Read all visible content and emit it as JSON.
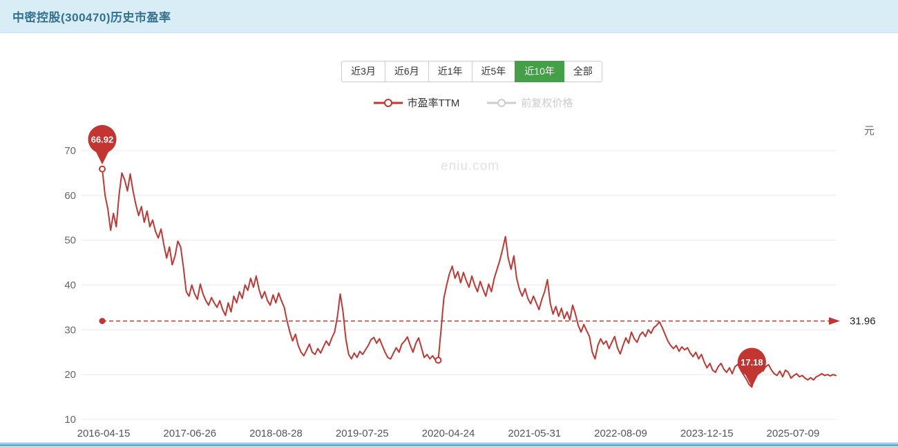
{
  "header": {
    "title": "中密控股(300470)历史市盈率"
  },
  "toolbar": {
    "ranges": [
      {
        "label": "近3月",
        "active": false
      },
      {
        "label": "近6月",
        "active": false
      },
      {
        "label": "近1年",
        "active": false
      },
      {
        "label": "近5年",
        "active": false
      },
      {
        "label": "近10年",
        "active": true
      },
      {
        "label": "全部",
        "active": false
      }
    ]
  },
  "legend": [
    {
      "label": "市盈率TTM",
      "color": "#c23531",
      "text_color": "#333333",
      "active": true
    },
    {
      "label": "前复权价格",
      "color": "#cccccc",
      "text_color": "#cccccc",
      "active": false
    }
  ],
  "watermark": "eniu.com",
  "colors": {
    "accent_green": "#43a047",
    "series_red": "#c23531",
    "legend_inactive": "#cccccc",
    "header_bg": "#d9edf7",
    "header_text": "#31708f",
    "grid": "#e8e8e8",
    "axis_text": "#666666"
  },
  "chart_data": {
    "type": "line",
    "title": "中密控股(300470)历史市盈率",
    "unit_right": "元",
    "ylim": [
      10,
      70
    ],
    "y_ticks": [
      10,
      20,
      30,
      40,
      50,
      60,
      70
    ],
    "x_tick_labels": [
      "2016-04-15",
      "2017-06-26",
      "2018-08-28",
      "2019-07-25",
      "2020-04-24",
      "2021-05-31",
      "2022-08-09",
      "2023-12-15",
      "2025-07-09"
    ],
    "grid": true,
    "legend_position": "top",
    "series": [
      {
        "name": "市盈率TTM",
        "color": "#c23531",
        "values": [
          65.9,
          60,
          57,
          52.2,
          56,
          53,
          60,
          65,
          63.5,
          61,
          64.8,
          61,
          58,
          55.5,
          57.5,
          54,
          56.5,
          53,
          54.5,
          52,
          50.5,
          52.5,
          49,
          46,
          48.5,
          44.5,
          46.5,
          49.8,
          48.5,
          44,
          38.5,
          37.5,
          40,
          38,
          36.8,
          40.2,
          38,
          36.5,
          35.5,
          37.2,
          36,
          35,
          36.5,
          34.5,
          33.2,
          36,
          34,
          37.5,
          36,
          38.5,
          37,
          40,
          38.8,
          41.5,
          39.5,
          42,
          39,
          37,
          38.5,
          36.5,
          35.5,
          37.8,
          36,
          38.2,
          36.5,
          35,
          32,
          29.5,
          27.5,
          29,
          26.5,
          25,
          24.2,
          25.5,
          26.8,
          25,
          24.5,
          25.8,
          24.8,
          26.2,
          27.5,
          26.5,
          28.2,
          29.5,
          33,
          38,
          34,
          28,
          24.5,
          23.5,
          24.8,
          23.8,
          25.2,
          24.5,
          25.5,
          26.5,
          27.8,
          28.3,
          27,
          28,
          26.5,
          25,
          23.8,
          23.5,
          24.8,
          26,
          25,
          26.8,
          27.5,
          28.4,
          26.5,
          25,
          27,
          28.2,
          26,
          23.8,
          24.5,
          23.5,
          24.2,
          23.2,
          23.2,
          30,
          37,
          40,
          42.5,
          44.2,
          41.5,
          43,
          40.5,
          42.8,
          41,
          39.5,
          42,
          40,
          38.5,
          40.8,
          39,
          37.5,
          40.2,
          38.5,
          41.5,
          43.5,
          45.5,
          48,
          50.8,
          46,
          43.5,
          46.5,
          41.5,
          39,
          37.5,
          39.2,
          37,
          35.8,
          37.5,
          36,
          34.5,
          36.8,
          38.5,
          41.2,
          36,
          33.5,
          35.2,
          33,
          34.8,
          32.5,
          34,
          32.2,
          35.5,
          33.5,
          31,
          29.5,
          31.2,
          29.8,
          28.5,
          25,
          23.5,
          26.5,
          28,
          26.8,
          27.5,
          25.8,
          27.2,
          28.5,
          26,
          24.6,
          26.5,
          28.2,
          27,
          29.5,
          28,
          27.2,
          28.8,
          29.5,
          28.5,
          30,
          29.2,
          30.5,
          31,
          31.8,
          30.5,
          29,
          27.5,
          26.5,
          25.8,
          26.5,
          25.2,
          26.2,
          25.5,
          26,
          24.8,
          24,
          25,
          23.5,
          24.5,
          22.8,
          21.5,
          22.5,
          21,
          20.5,
          21.8,
          22.5,
          21.2,
          20.5,
          21.5,
          20.2,
          21.8,
          22.3,
          21,
          20,
          19,
          17.8,
          17.2,
          19.5,
          22.5,
          21.5,
          20.8,
          21.8,
          22.2,
          21,
          20.2,
          19.8,
          20.8,
          19.5,
          21,
          20.5,
          19.2,
          19.8,
          20.2,
          19.5,
          19.8,
          19.2,
          18.8,
          19.3,
          18.8,
          19.5,
          19.8,
          20.2,
          19.8,
          20,
          19.7,
          20,
          19.8
        ]
      }
    ],
    "markers": {
      "max": {
        "label": "66.92",
        "value": 66.92
      },
      "min": {
        "label": "17.18",
        "value": 17.18
      },
      "current": {
        "label": "31.96",
        "value": 31.96
      }
    },
    "dot_indexes": [
      0,
      120
    ]
  }
}
